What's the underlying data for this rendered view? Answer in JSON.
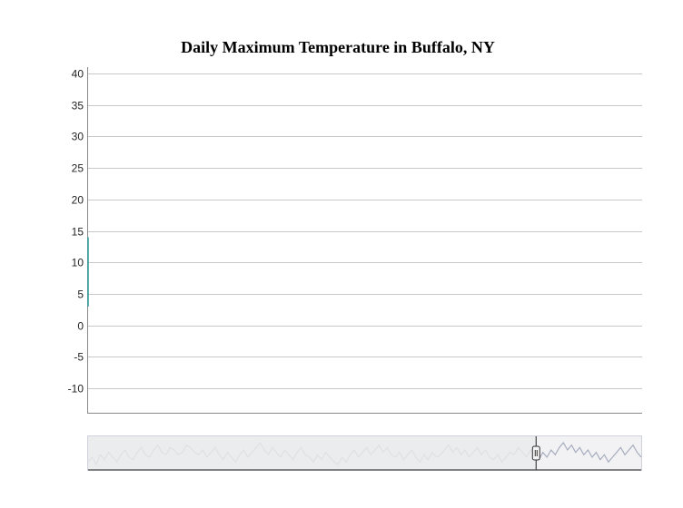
{
  "chart_data": {
    "type": "line",
    "title": "Daily Maximum Temperature in Buffalo, NY",
    "xlabel": "",
    "ylabel": "",
    "ylim": [
      -14,
      41
    ],
    "y_ticks": [
      40,
      35,
      30,
      25,
      20,
      15,
      10,
      5,
      0,
      -5,
      -10
    ],
    "y_tick_labels": [
      "40",
      "35",
      "30",
      "25",
      "20",
      "15",
      "10",
      "5",
      "0",
      "-5",
      "-10"
    ],
    "grid": true,
    "main_series_color": "#2a9d9d",
    "main_series_visible_segment_y": [
      3,
      14
    ],
    "navigator": {
      "handle_position": 0.81,
      "series_color": "#b8bcc8",
      "series": [
        6,
        8,
        5,
        9,
        7,
        10,
        8,
        6,
        9,
        11,
        8,
        7,
        10,
        12,
        9,
        8,
        11,
        13,
        10,
        9,
        12,
        11,
        9,
        10,
        13,
        12,
        10,
        9,
        11,
        8,
        10,
        12,
        9,
        7,
        10,
        8,
        6,
        9,
        11,
        8,
        10,
        12,
        14,
        11,
        9,
        12,
        10,
        8,
        11,
        9,
        7,
        10,
        12,
        9,
        8,
        6,
        9,
        7,
        10,
        8,
        6,
        5,
        8,
        6,
        9,
        11,
        8,
        10,
        12,
        9,
        11,
        13,
        10,
        12,
        9,
        8,
        10,
        7,
        9,
        11,
        8,
        6,
        9,
        7,
        10,
        8,
        9,
        11,
        13,
        10,
        12,
        9,
        11,
        8,
        10,
        12,
        9,
        11,
        8,
        7,
        9,
        6,
        8,
        10,
        9,
        12,
        10,
        8,
        11,
        9,
        7,
        10,
        8,
        11,
        9,
        12,
        14,
        11,
        13,
        10,
        12,
        9,
        11,
        8,
        10,
        7,
        9,
        6,
        8,
        10,
        12,
        9,
        11,
        13,
        10,
        8
      ]
    }
  }
}
